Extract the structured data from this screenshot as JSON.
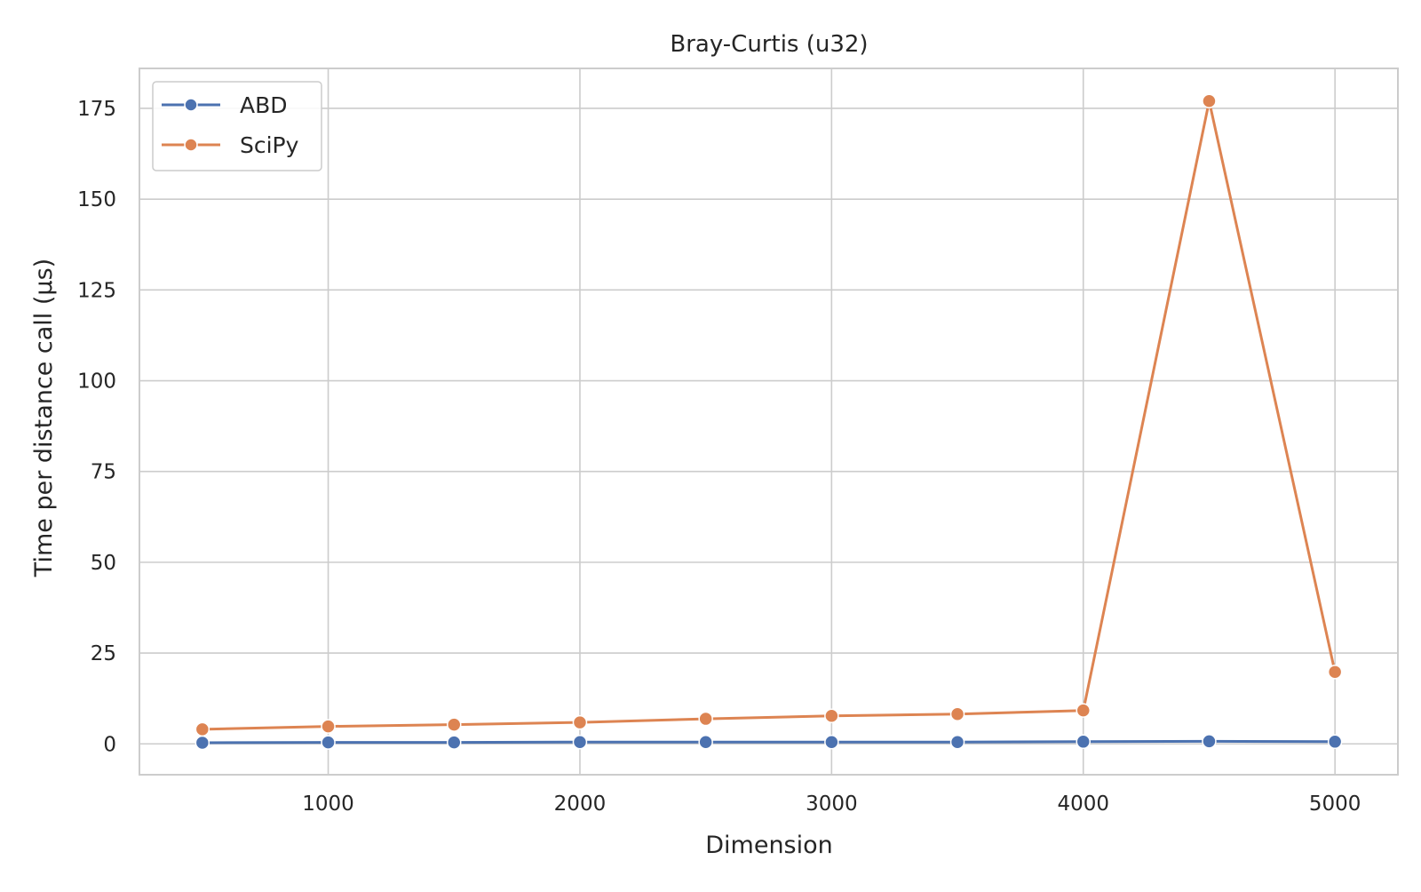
{
  "chart_data": {
    "type": "line",
    "title": "Bray-Curtis (u32)",
    "xlabel": "Dimension",
    "ylabel": "Time per distance call (µs)",
    "xlim": [
      250,
      5250
    ],
    "ylim": [
      -8.5,
      186
    ],
    "x_ticks": [
      1000,
      2000,
      3000,
      4000,
      5000
    ],
    "y_ticks": [
      0,
      25,
      50,
      75,
      100,
      125,
      150,
      175
    ],
    "grid": true,
    "legend_position": "top-left",
    "x": [
      500,
      1000,
      1500,
      2000,
      2500,
      3000,
      3500,
      4000,
      4500,
      5000
    ],
    "series": [
      {
        "name": "ABD",
        "color": "#4c72b0",
        "values": [
          0.3,
          0.4,
          0.4,
          0.5,
          0.5,
          0.5,
          0.5,
          0.6,
          0.7,
          0.6
        ]
      },
      {
        "name": "SciPy",
        "color": "#dd8452",
        "values": [
          4.0,
          4.8,
          5.3,
          5.9,
          6.9,
          7.7,
          8.2,
          9.2,
          177.0,
          19.8
        ]
      }
    ]
  }
}
